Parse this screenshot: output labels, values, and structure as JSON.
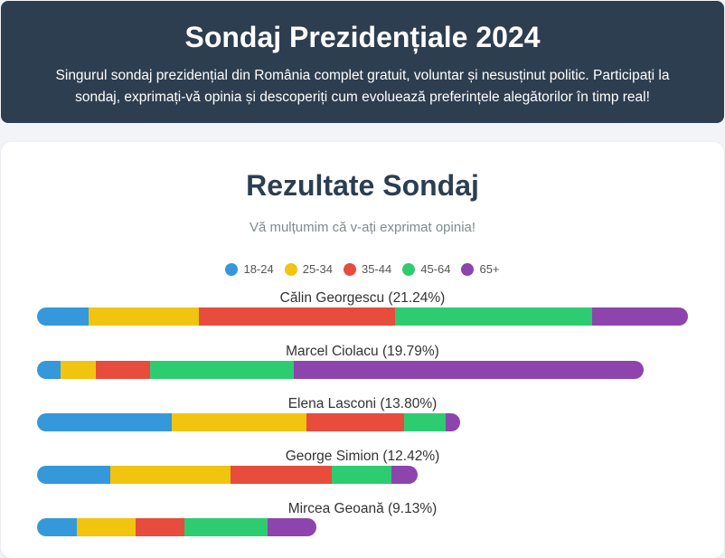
{
  "header": {
    "title": "Sondaj Prezidențiale 2024",
    "description": "Singurul sondaj prezidențial din România complet gratuit, voluntar și nesusținut politic. Participați la sondaj, exprimați-vă opinia și descoperiți cum evoluează preferințele alegătorilor în timp real!"
  },
  "results": {
    "title": "Rezultate Sondaj",
    "thanks": "Vă mulțumim că v-ați exprimat opinia!"
  },
  "colors": {
    "18-24": "#3498db",
    "25-34": "#f1c40f",
    "35-44": "#e74c3c",
    "45-64": "#2ecc71",
    "65+": "#8e44ad"
  },
  "chart_data": {
    "type": "bar",
    "stacked": true,
    "orientation": "horizontal",
    "title": "Rezultate Sondaj",
    "legend_position": "top",
    "categories": [
      "Călin Georgescu (21.24%)",
      "Marcel Ciolacu (19.79%)",
      "Elena Lasconi (13.80%)",
      "George Simion (12.42%)",
      "Mircea Geoană (9.13%)"
    ],
    "totals": [
      21.24,
      19.79,
      13.8,
      12.42,
      9.13
    ],
    "series": [
      {
        "name": "18-24",
        "values": [
          1.69,
          0.77,
          4.39,
          2.38,
          1.3
        ]
      },
      {
        "name": "25-34",
        "values": [
          3.6,
          1.14,
          4.39,
          3.93,
          1.92
        ]
      },
      {
        "name": "35-44",
        "values": [
          6.4,
          1.78,
          3.21,
          3.31,
          1.6
        ]
      },
      {
        "name": "45-64",
        "values": [
          6.43,
          4.7,
          1.33,
          1.93,
          2.69
        ]
      },
      {
        "name": "65+",
        "values": [
          3.12,
          11.4,
          0.48,
          0.87,
          1.62
        ]
      }
    ]
  }
}
